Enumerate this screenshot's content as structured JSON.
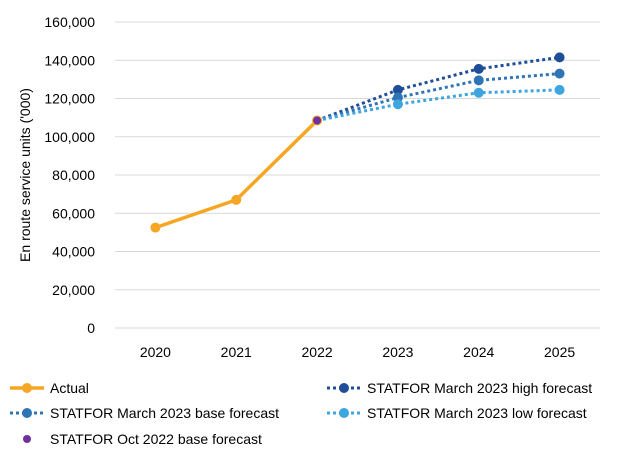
{
  "chart_data": {
    "type": "line",
    "title": "",
    "xlabel": "",
    "ylabel": "En route service units ('000)",
    "x": [
      "2020",
      "2021",
      "2022",
      "2023",
      "2024",
      "2025"
    ],
    "ylim": [
      0,
      160000
    ],
    "yticks": [
      "0",
      "20,000",
      "40,000",
      "60,000",
      "80,000",
      "100,000",
      "120,000",
      "140,000",
      "160,000"
    ],
    "grid": true,
    "legend_position": "bottom",
    "series": [
      {
        "name": "Actual",
        "style": "solid",
        "color": "#F5A623",
        "points": [
          {
            "x": "2020",
            "y": 52500
          },
          {
            "x": "2021",
            "y": 67000
          },
          {
            "x": "2022",
            "y": 108500
          }
        ]
      },
      {
        "name": "STATFOR March 2023 high forecast",
        "style": "dotted",
        "color": "#1F4E99",
        "points": [
          {
            "x": "2022",
            "y": 108500
          },
          {
            "x": "2023",
            "y": 124500
          },
          {
            "x": "2024",
            "y": 135500
          },
          {
            "x": "2025",
            "y": 141500
          }
        ]
      },
      {
        "name": "STATFOR March 2023 base forecast",
        "style": "dotted",
        "color": "#2E75B6",
        "points": [
          {
            "x": "2022",
            "y": 108500
          },
          {
            "x": "2023",
            "y": 120500
          },
          {
            "x": "2024",
            "y": 129500
          },
          {
            "x": "2025",
            "y": 133000
          }
        ]
      },
      {
        "name": "STATFOR March 2023 low forecast",
        "style": "dotted",
        "color": "#3DA5E0",
        "points": [
          {
            "x": "2022",
            "y": 108500
          },
          {
            "x": "2023",
            "y": 117000
          },
          {
            "x": "2024",
            "y": 123000
          },
          {
            "x": "2025",
            "y": 124500
          }
        ]
      },
      {
        "name": "STATFOR Oct 2022 base forecast",
        "style": "marker",
        "color": "#7030A0",
        "points": [
          {
            "x": "2022",
            "y": 108500
          }
        ]
      }
    ]
  }
}
